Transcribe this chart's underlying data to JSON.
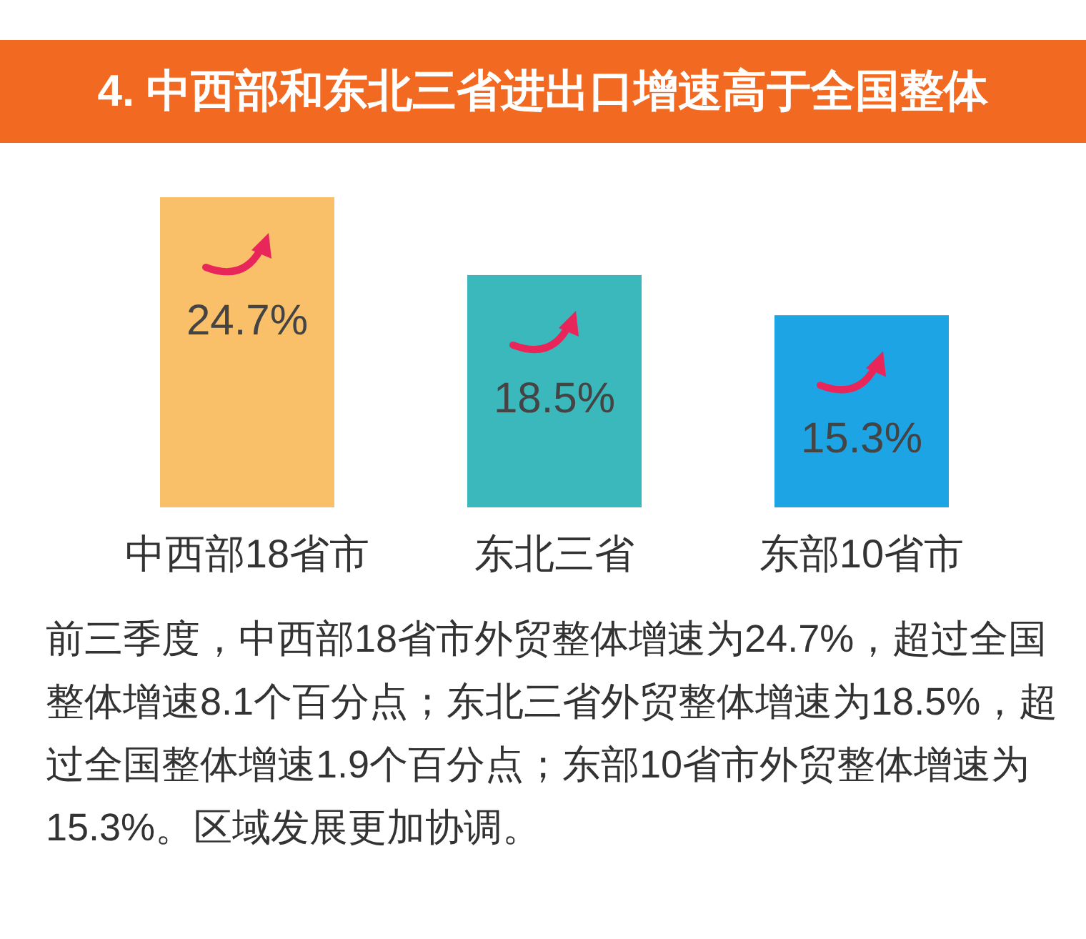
{
  "chart_data": {
    "type": "bar",
    "title": "4. 中西部和东北三省进出口增速高于全国整体",
    "categories": [
      "中西部18省市",
      "东北三省",
      "东部10省市"
    ],
    "values": [
      24.7,
      18.5,
      15.3
    ],
    "colors": [
      "#f9bf69",
      "#3ab8bc",
      "#1da4e4"
    ],
    "data_labels": true,
    "value_labels": [
      "24.7%",
      "18.5%",
      "15.3%"
    ],
    "annotations": [
      "前三季度，中西部18省市外贸整体增速为24.7%，超过全国整体增速8.1个百分点；东北三省外贸整体增速为18.5%，超过全国整体增速1.9个百分点；东部10省市外贸整体增速为15.3%。区域发展更加协调。"
    ]
  }
}
